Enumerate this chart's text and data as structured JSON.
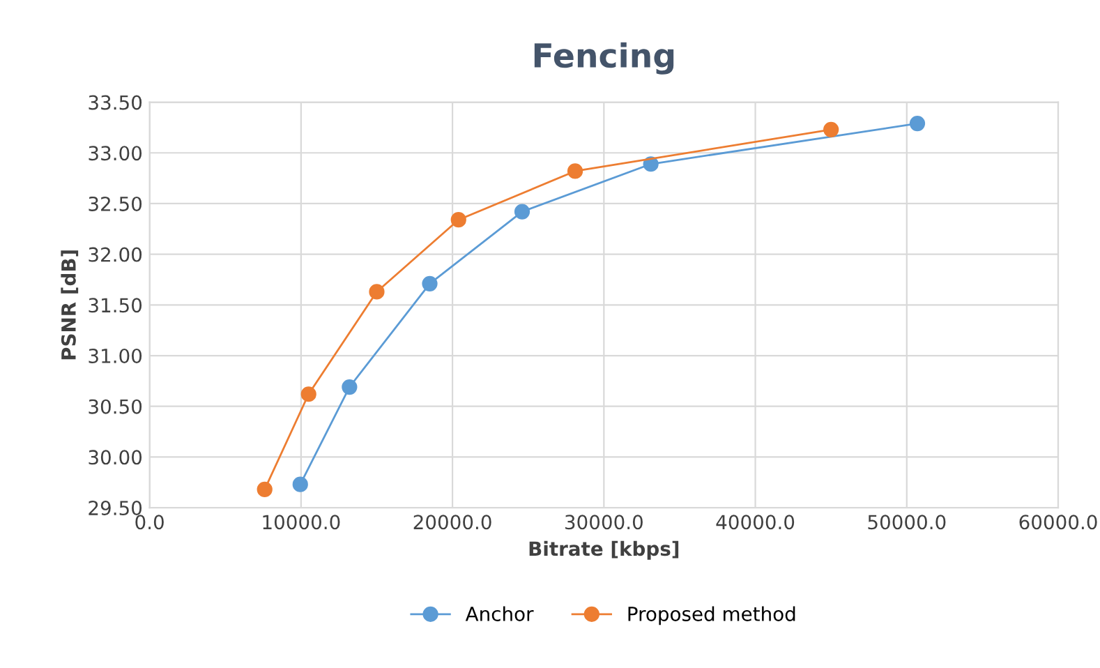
{
  "chart_data": {
    "type": "line",
    "title": "Fencing",
    "xlabel": "Bitrate [kbps]",
    "ylabel": "PSNR [dB]",
    "series": [
      {
        "name": "Anchor",
        "color": "#5b9bd5",
        "x": [
          9950,
          13200,
          18500,
          24600,
          33100,
          50700
        ],
        "values": [
          29.73,
          30.69,
          31.71,
          32.42,
          32.89,
          33.29
        ]
      },
      {
        "name": "Proposed method",
        "color": "#ed7d31",
        "x": [
          7600,
          10500,
          15000,
          20400,
          28100,
          45000
        ],
        "values": [
          29.68,
          30.62,
          31.63,
          32.34,
          32.82,
          33.23
        ]
      }
    ],
    "xlim": [
      0,
      60000
    ],
    "xticks": [
      {
        "value": 0,
        "label": "0.0"
      },
      {
        "value": 10000,
        "label": "10000.0"
      },
      {
        "value": 20000,
        "label": "20000.0"
      },
      {
        "value": 30000,
        "label": "30000.0"
      },
      {
        "value": 40000,
        "label": "40000.0"
      },
      {
        "value": 50000,
        "label": "50000.0"
      },
      {
        "value": 60000,
        "label": "60000.0"
      }
    ],
    "ylim": [
      29.5,
      33.5
    ],
    "yticks": [
      {
        "value": 29.5,
        "label": "29.50"
      },
      {
        "value": 30,
        "label": "30.00"
      },
      {
        "value": 30.5,
        "label": "30.50"
      },
      {
        "value": 31,
        "label": "31.00"
      },
      {
        "value": 31.5,
        "label": "31.50"
      },
      {
        "value": 32,
        "label": "32.00"
      },
      {
        "value": 32.5,
        "label": "32.50"
      },
      {
        "value": 33,
        "label": "33.00"
      },
      {
        "value": 33.5,
        "label": "33.50"
      }
    ],
    "grid": true,
    "legend": "bottom",
    "marker": "circle",
    "line_style": "solid"
  }
}
